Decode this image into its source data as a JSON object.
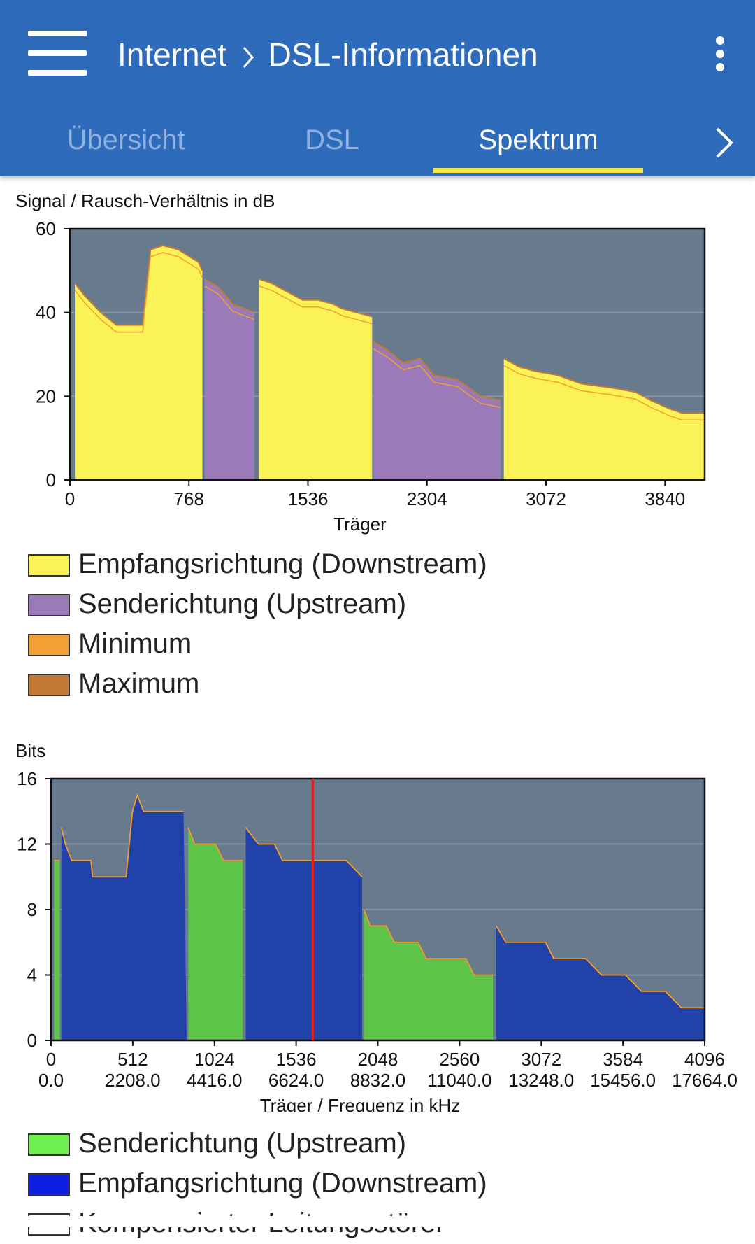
{
  "header": {
    "crumb_section": "Internet",
    "crumb_page": "DSL-Informationen",
    "tabs": [
      {
        "label": "Übersicht"
      },
      {
        "label": "DSL"
      },
      {
        "label": "Spektrum"
      }
    ]
  },
  "colors": {
    "appbar": "#2e6bba",
    "indicator": "#f2e54a",
    "plot_bg": "#687b8e",
    "downstream_snr": "#fbf257",
    "upstream_snr": "#9a7ab8",
    "minimum": "#f3a032",
    "maximum": "#c47a33",
    "upstream_bits": "#5ec54a",
    "downstream_bits": "#2142a9",
    "marker": "#e3201b"
  },
  "chart_data": [
    {
      "type": "area",
      "title": "Signal / Rausch-Verhältnis in dB",
      "xlabel": "Träger",
      "ylabel": "Signal / Rausch-Verhältnis in dB",
      "xlim": [
        0,
        4096
      ],
      "ylim": [
        0,
        60
      ],
      "x_ticks": [
        "0",
        "768",
        "1536",
        "2304",
        "3072",
        "3840"
      ],
      "y_ticks": [
        "0",
        "20",
        "40",
        "60"
      ],
      "legend": [
        "Empfangsrichtung (Downstream)",
        "Senderichtung (Upstream)",
        "Minimum",
        "Maximum"
      ],
      "series": [
        {
          "name": "Empfangsrichtung (Downstream)",
          "points": [
            [
              32,
              0
            ],
            [
              32,
              47
            ],
            [
              95,
              44
            ],
            [
              200,
              40
            ],
            [
              300,
              37
            ],
            [
              470,
              37
            ],
            [
              480,
              41
            ],
            [
              520,
              55
            ],
            [
              600,
              56
            ],
            [
              700,
              55
            ],
            [
              830,
              52
            ],
            [
              855,
              50
            ],
            [
              855,
              0
            ]
          ]
        },
        {
          "name": "Senderichtung (Upstream)",
          "points": [
            [
              870,
              0
            ],
            [
              870,
              48
            ],
            [
              960,
              46
            ],
            [
              1050,
              42
            ],
            [
              1190,
              40
            ],
            [
              1190,
              0
            ]
          ]
        },
        {
          "name": "Empfangsrichtung (Downstream)",
          "points": [
            [
              1220,
              0
            ],
            [
              1220,
              48
            ],
            [
              1300,
              47
            ],
            [
              1400,
              45
            ],
            [
              1500,
              43
            ],
            [
              1600,
              43
            ],
            [
              1700,
              42
            ],
            [
              1750,
              41
            ],
            [
              1950,
              39
            ],
            [
              1950,
              0
            ]
          ]
        },
        {
          "name": "Senderichtung (Upstream)",
          "points": [
            [
              1960,
              0
            ],
            [
              1960,
              33
            ],
            [
              2050,
              31
            ],
            [
              2150,
              28
            ],
            [
              2260,
              29
            ],
            [
              2350,
              25
            ],
            [
              2500,
              24
            ],
            [
              2650,
              20
            ],
            [
              2780,
              19
            ],
            [
              2780,
              0
            ]
          ]
        },
        {
          "name": "Empfangsrichtung (Downstream)",
          "points": [
            [
              2800,
              0
            ],
            [
              2800,
              29
            ],
            [
              2900,
              27
            ],
            [
              3000,
              26
            ],
            [
              3150,
              25
            ],
            [
              3300,
              23
            ],
            [
              3500,
              22
            ],
            [
              3650,
              21
            ],
            [
              3750,
              19
            ],
            [
              3870,
              17
            ],
            [
              3950,
              16
            ],
            [
              4096,
              16
            ],
            [
              4096,
              0
            ]
          ]
        }
      ]
    },
    {
      "type": "area",
      "title": "Bits",
      "xlabel": "Träger / Frequenz in kHz",
      "ylabel": "Bits",
      "xlim": [
        0,
        4096
      ],
      "ylim": [
        0,
        16
      ],
      "x_ticks": [
        "0",
        "512",
        "1024",
        "1536",
        "2048",
        "2560",
        "3072",
        "3584",
        "4096"
      ],
      "x_ticks_freq": [
        "0.0",
        "2208.0",
        "4416.0",
        "6624.0",
        "8832.0",
        "11040.0",
        "13248.0",
        "15456.0",
        "17664.0"
      ],
      "y_ticks": [
        "0",
        "4",
        "8",
        "12",
        "16"
      ],
      "marker_x": 1640,
      "legend": [
        "Senderichtung (Upstream)",
        "Empfangsrichtung (Downstream)",
        "Kompensierter Leitungsstörer"
      ],
      "series": [
        {
          "name": "Senderichtung (Upstream)",
          "points": [
            [
              20,
              0
            ],
            [
              20,
              11
            ],
            [
              55,
              11
            ],
            [
              55,
              0
            ]
          ]
        },
        {
          "name": "Empfangsrichtung (Downstream)",
          "points": [
            [
              65,
              0
            ],
            [
              65,
              13
            ],
            [
              90,
              12
            ],
            [
              130,
              11
            ],
            [
              250,
              11
            ],
            [
              260,
              10
            ],
            [
              330,
              10
            ],
            [
              470,
              10
            ],
            [
              510,
              14
            ],
            [
              540,
              15
            ],
            [
              580,
              14
            ],
            [
              700,
              14
            ],
            [
              830,
              14
            ],
            [
              850,
              0
            ]
          ]
        },
        {
          "name": "Senderichtung (Upstream)",
          "points": [
            [
              860,
              0
            ],
            [
              860,
              13
            ],
            [
              900,
              12
            ],
            [
              1030,
              12
            ],
            [
              1080,
              11
            ],
            [
              1200,
              11
            ],
            [
              1200,
              0
            ]
          ]
        },
        {
          "name": "Empfangsrichtung (Downstream)",
          "points": [
            [
              1220,
              0
            ],
            [
              1220,
              13
            ],
            [
              1300,
              12
            ],
            [
              1400,
              12
            ],
            [
              1450,
              11
            ],
            [
              1600,
              11
            ],
            [
              1700,
              11
            ],
            [
              1850,
              11
            ],
            [
              1950,
              10
            ],
            [
              1950,
              0
            ]
          ]
        },
        {
          "name": "Senderichtung (Upstream)",
          "points": [
            [
              1960,
              0
            ],
            [
              1960,
              8
            ],
            [
              2000,
              7
            ],
            [
              2100,
              7
            ],
            [
              2150,
              6
            ],
            [
              2300,
              6
            ],
            [
              2350,
              5
            ],
            [
              2500,
              5
            ],
            [
              2600,
              5
            ],
            [
              2650,
              4
            ],
            [
              2770,
              4
            ],
            [
              2770,
              0
            ]
          ]
        },
        {
          "name": "Empfangsrichtung (Downstream)",
          "points": [
            [
              2790,
              0
            ],
            [
              2790,
              7
            ],
            [
              2850,
              6
            ],
            [
              3000,
              6
            ],
            [
              3100,
              6
            ],
            [
              3150,
              5
            ],
            [
              3350,
              5
            ],
            [
              3450,
              4
            ],
            [
              3600,
              4
            ],
            [
              3700,
              3
            ],
            [
              3850,
              3
            ],
            [
              3950,
              2
            ],
            [
              4096,
              2
            ],
            [
              4096,
              0
            ]
          ]
        }
      ]
    }
  ]
}
